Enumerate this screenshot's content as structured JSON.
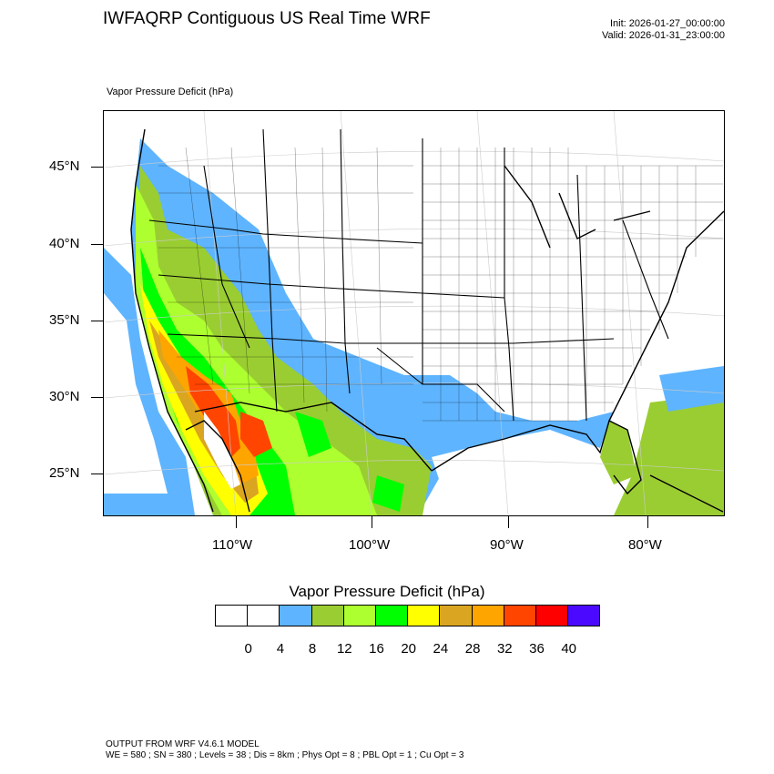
{
  "header": {
    "title": "IWFAQRP Contiguous US Real Time WRF",
    "init": "Init: 2026-01-27_00:00:00",
    "valid": "Valid: 2026-01-31_23:00:00"
  },
  "map": {
    "variable_label": "Vapor Pressure Deficit   (hPa)",
    "lat_labels": [
      "45°N",
      "40°N",
      "35°N",
      "30°N",
      "25°N"
    ],
    "lon_labels": [
      "110°W",
      "100°W",
      "90°W",
      "80°W"
    ],
    "colors": {
      "land_low": "#ffffff",
      "vpd_4_8": "#5eb4ff",
      "vpd_8_12": "#9acd32",
      "vpd_12_16": "#adff2f",
      "vpd_16_20": "#00ff00",
      "vpd_20_24": "#ffff00",
      "vpd_24_28": "#daa520",
      "vpd_28_32": "#ffa500",
      "vpd_32_36": "#ff4500",
      "vpd_36_40": "#ff0000"
    }
  },
  "colorbar": {
    "title": "Vapor Pressure Deficit  (hPa)",
    "colors": [
      "#ffffff",
      "#ffffff",
      "#5eb4ff",
      "#9acd32",
      "#adff2f",
      "#00ff00",
      "#ffff00",
      "#daa520",
      "#ffa500",
      "#ff4500",
      "#ff0000",
      "#4b0aff"
    ],
    "labels": [
      "0",
      "4",
      "8",
      "12",
      "16",
      "20",
      "24",
      "28",
      "32",
      "36",
      "40"
    ]
  },
  "footer": {
    "line1": "OUTPUT FROM WRF V4.6.1 MODEL",
    "line2": "WE = 580 ; SN = 380 ; Levels = 38 ; Dis = 8km ; Phys Opt = 8 ; PBL Opt = 1 ; Cu Opt = 3"
  }
}
